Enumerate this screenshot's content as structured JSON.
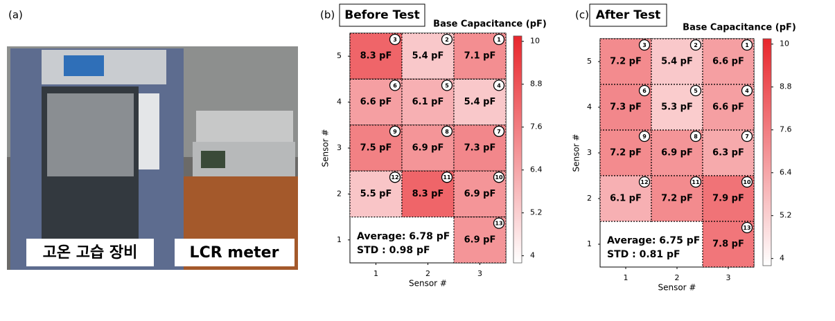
{
  "photo": {
    "panel_label": "(a)",
    "captions": [
      "고온 고습 장비",
      "LCR meter"
    ]
  },
  "chart_data": [
    {
      "type": "heatmap",
      "panel_label": "(b)",
      "title": "Before Test",
      "colorbar_label": "Base Capacitance (pF)",
      "x_label": "Sensor #",
      "y_label": "Sensor #",
      "x": [
        1,
        2,
        3,
        1,
        2,
        3,
        1,
        2,
        3,
        1,
        2,
        3,
        3
      ],
      "y": [
        5,
        5,
        5,
        4,
        4,
        4,
        3,
        3,
        3,
        2,
        2,
        2,
        1
      ],
      "values": [
        8.3,
        5.4,
        7.1,
        6.6,
        6.1,
        5.4,
        7.5,
        6.9,
        7.3,
        5.5,
        8.3,
        6.9,
        6.9
      ],
      "value_labels": [
        "8.3 pF",
        "5.4 pF",
        "7.1 pF",
        "6.6 pF",
        "6.1 pF",
        "5.4 pF",
        "7.5 pF",
        "6.9 pF",
        "7.3 pF",
        "5.5 pF",
        "8.3 pF",
        "6.9 pF",
        "6.9 pF"
      ],
      "sensor_ids": [
        3,
        2,
        1,
        6,
        5,
        4,
        9,
        8,
        7,
        12,
        11,
        10,
        13
      ],
      "annotations": [
        "Average: 6.78  pF",
        "STD : 0.98  pF"
      ],
      "xlim": [
        0.5,
        3.5
      ],
      "ylim": [
        0.5,
        5.5
      ],
      "xticks": [
        1,
        2,
        3
      ],
      "yticks": [
        1,
        2,
        3,
        4,
        5
      ],
      "clim": [
        3.8,
        10.15
      ],
      "cticks": [
        4,
        5.2,
        6.4,
        7.6,
        8.8,
        10
      ],
      "colors": [
        "#ffffff",
        "#e8262c"
      ]
    },
    {
      "type": "heatmap",
      "panel_label": "(c)",
      "title": "After Test",
      "colorbar_label": "Base Capacitance (pF)",
      "x_label": "Sensor #",
      "y_label": "Sensor #",
      "x": [
        1,
        2,
        3,
        1,
        2,
        3,
        1,
        2,
        3,
        1,
        2,
        3,
        3
      ],
      "y": [
        5,
        5,
        5,
        4,
        4,
        4,
        3,
        3,
        3,
        2,
        2,
        2,
        1
      ],
      "values": [
        7.2,
        5.4,
        6.6,
        7.3,
        5.3,
        6.6,
        7.2,
        6.9,
        6.3,
        6.1,
        7.2,
        7.9,
        7.8
      ],
      "value_labels": [
        "7.2 pF",
        "5.4 pF",
        "6.6 pF",
        "7.3 pF",
        "5.3 pF",
        "6.6 pF",
        "7.2 pF",
        "6.9 pF",
        "6.3 pF",
        "6.1 pF",
        "7.2 pF",
        "7.9 pF",
        "7.8 pF"
      ],
      "sensor_ids": [
        3,
        2,
        1,
        6,
        5,
        4,
        9,
        8,
        7,
        12,
        11,
        10,
        13
      ],
      "annotations": [
        "Average: 6.75  pF",
        "STD : 0.81  pF"
      ],
      "xlim": [
        0.5,
        3.5
      ],
      "ylim": [
        0.5,
        5.5
      ],
      "xticks": [
        1,
        2,
        3
      ],
      "yticks": [
        1,
        2,
        3,
        4,
        5
      ],
      "clim": [
        3.8,
        10.15
      ],
      "cticks": [
        4,
        5.2,
        6.4,
        7.6,
        8.8,
        10
      ],
      "colors": [
        "#ffffff",
        "#e8262c"
      ]
    }
  ]
}
